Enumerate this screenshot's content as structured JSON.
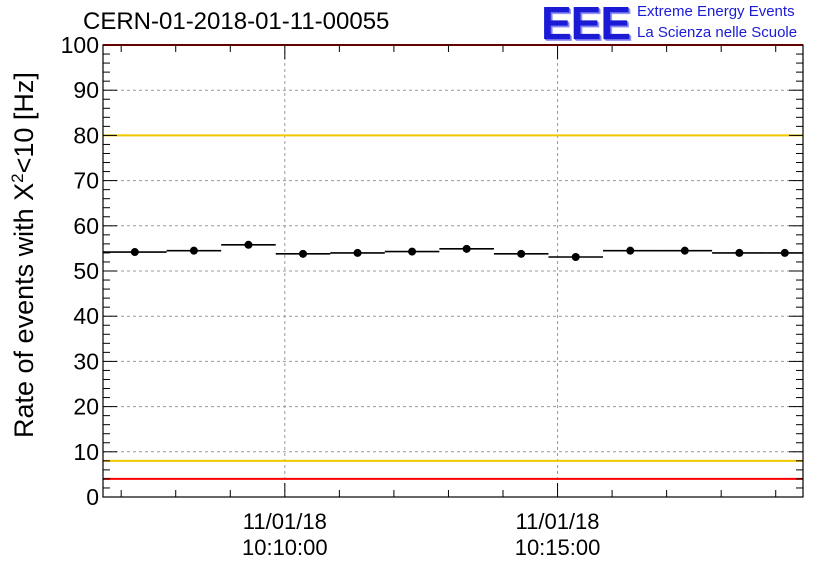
{
  "chart_data": {
    "type": "scatter",
    "title": "CERN-01-2018-01-11-00055",
    "ylabel_prefix": "Rate of events with X",
    "ylabel_sup": "2",
    "ylabel_suffix": "<10 [Hz]",
    "ylim": [
      0,
      100
    ],
    "yticks": [
      0,
      10,
      20,
      30,
      40,
      50,
      60,
      70,
      80,
      90,
      100
    ],
    "grid": true,
    "xlim": [
      "10:06:40",
      "10:19:30"
    ],
    "x_major_ticks": [
      {
        "time": "10:10:00",
        "date_label": "11/01/18",
        "time_label": "10:10:00"
      },
      {
        "time": "10:15:00",
        "date_label": "11/01/18",
        "time_label": "10:15:00"
      }
    ],
    "points": [
      {
        "x_start": "10:06:40",
        "x_end": "10:07:50",
        "y": 54.2,
        "err": 0.6
      },
      {
        "x_start": "10:07:50",
        "x_end": "10:08:50",
        "y": 54.5,
        "err": 0.6
      },
      {
        "x_start": "10:08:50",
        "x_end": "10:09:50",
        "y": 55.8,
        "err": 0.6
      },
      {
        "x_start": "10:09:50",
        "x_end": "10:10:50",
        "y": 53.8,
        "err": 0.6
      },
      {
        "x_start": "10:10:50",
        "x_end": "10:11:50",
        "y": 54.0,
        "err": 0.6
      },
      {
        "x_start": "10:11:50",
        "x_end": "10:12:50",
        "y": 54.3,
        "err": 0.6
      },
      {
        "x_start": "10:12:50",
        "x_end": "10:13:50",
        "y": 54.9,
        "err": 0.6
      },
      {
        "x_start": "10:13:50",
        "x_end": "10:14:50",
        "y": 53.8,
        "err": 0.6
      },
      {
        "x_start": "10:14:50",
        "x_end": "10:15:50",
        "y": 53.1,
        "err": 0.6
      },
      {
        "x_start": "10:15:50",
        "x_end": "10:16:50",
        "y": 54.5,
        "err": 0.6
      },
      {
        "x_start": "10:16:50",
        "x_end": "10:17:50",
        "y": 54.5,
        "err": 0.6
      },
      {
        "x_start": "10:17:50",
        "x_end": "10:18:50",
        "y": 54.0,
        "err": 0.6
      },
      {
        "x_start": "10:18:50",
        "x_end": "10:19:30",
        "y": 54.0,
        "err": 0.6
      }
    ],
    "reference_lines": [
      {
        "y": 100,
        "color": "#ff0000"
      },
      {
        "y": 80,
        "color": "#f0c800"
      },
      {
        "y": 8,
        "color": "#f0c800"
      },
      {
        "y": 4,
        "color": "#ff0000"
      }
    ],
    "marker_color": "#000000"
  },
  "logo": {
    "mark": "EEE",
    "line1": "Extreme Energy Events",
    "line2": "La Scienza nelle Scuole",
    "color": "#1b1bd6"
  }
}
